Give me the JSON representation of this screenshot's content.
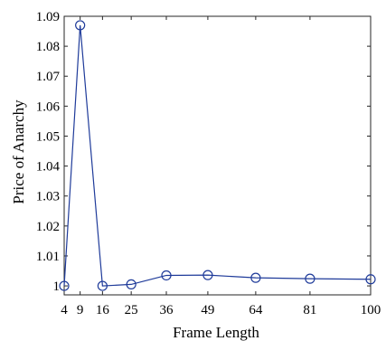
{
  "chart_data": {
    "type": "line",
    "xlabel": "Frame Length",
    "ylabel": "Price of Anarchy",
    "x": [
      4,
      9,
      16,
      25,
      36,
      49,
      64,
      81,
      100
    ],
    "series": [
      {
        "values": [
          1.0,
          1.087,
          1.0,
          1.0005,
          1.0035,
          1.0036,
          1.0027,
          1.0024,
          1.0022
        ]
      }
    ],
    "xlim": [
      4,
      100
    ],
    "ylim": [
      0.997,
      1.09
    ],
    "xticks": [
      4,
      9,
      16,
      25,
      36,
      49,
      64,
      81,
      100
    ],
    "yticks": [
      1.0,
      1.01,
      1.02,
      1.03,
      1.04,
      1.05,
      1.06,
      1.07,
      1.08,
      1.09
    ],
    "ytick_labels": [
      "1",
      "1.01",
      "1.02",
      "1.03",
      "1.04",
      "1.05",
      "1.06",
      "1.07",
      "1.08",
      "1.09"
    ],
    "marker": "circle",
    "line_color": "#1f3b9a",
    "grid": false,
    "box": true
  }
}
